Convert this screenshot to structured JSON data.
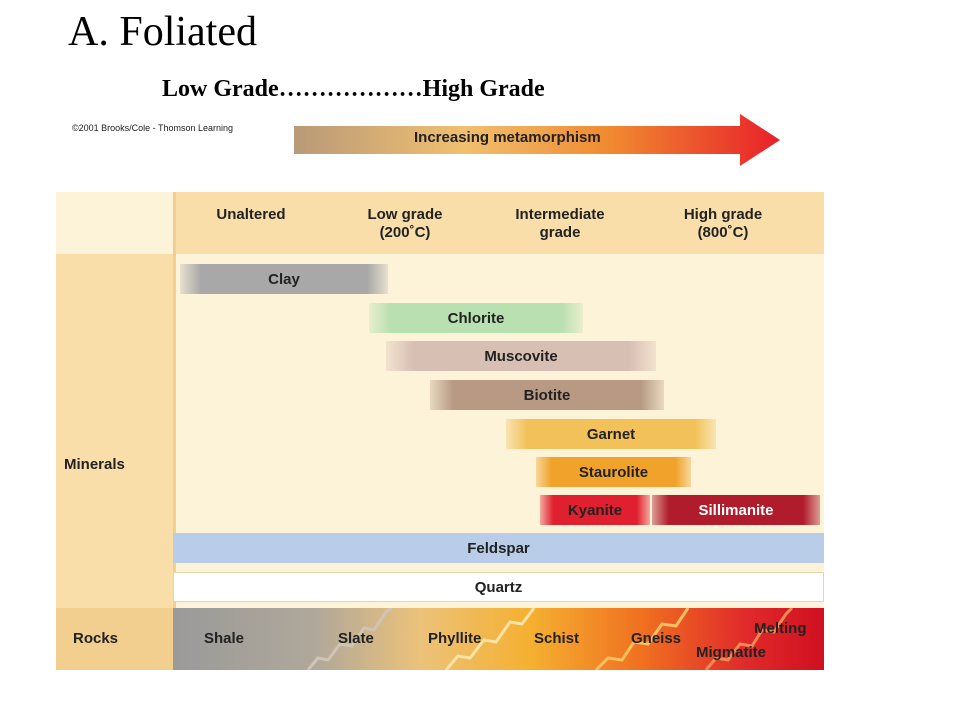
{
  "title": "A.  Foliated",
  "subtitle": "Low Grade………………High Grade",
  "copyright": "©2001 Brooks/Cole - Thomson Learning",
  "arrow_label": "Increasing metamorphism",
  "columns": [
    {
      "line1": "Unaltered",
      "line2": ""
    },
    {
      "line1": "Low grade",
      "line2": "(200˚C)"
    },
    {
      "line1": "Intermediate",
      "line2": "grade"
    },
    {
      "line1": "High grade",
      "line2": "(800˚C)"
    }
  ],
  "labels": {
    "minerals": "Minerals",
    "rocks": "Rocks"
  },
  "minerals": [
    {
      "name": "Clay",
      "color": "#a8a8a8"
    },
    {
      "name": "Chlorite",
      "color": "#b9e0b0"
    },
    {
      "name": "Muscovite",
      "color": "#d8bfb4"
    },
    {
      "name": "Biotite",
      "color": "#b89a84"
    },
    {
      "name": "Garnet",
      "color": "#f2c15a"
    },
    {
      "name": "Staurolite",
      "color": "#f0a22a"
    },
    {
      "name": "Kyanite",
      "color": "#e0202e"
    },
    {
      "name": "Sillimanite",
      "color": "#b01c2c"
    },
    {
      "name": "Feldspar",
      "color": "#b9cde8"
    },
    {
      "name": "Quartz",
      "color": "#ffffff"
    }
  ],
  "rocks": [
    {
      "name": "Shale"
    },
    {
      "name": "Slate"
    },
    {
      "name": "Phyllite"
    },
    {
      "name": "Schist"
    },
    {
      "name": "Gneiss"
    },
    {
      "name": "Melting"
    },
    {
      "name": "Migmatite"
    }
  ]
}
